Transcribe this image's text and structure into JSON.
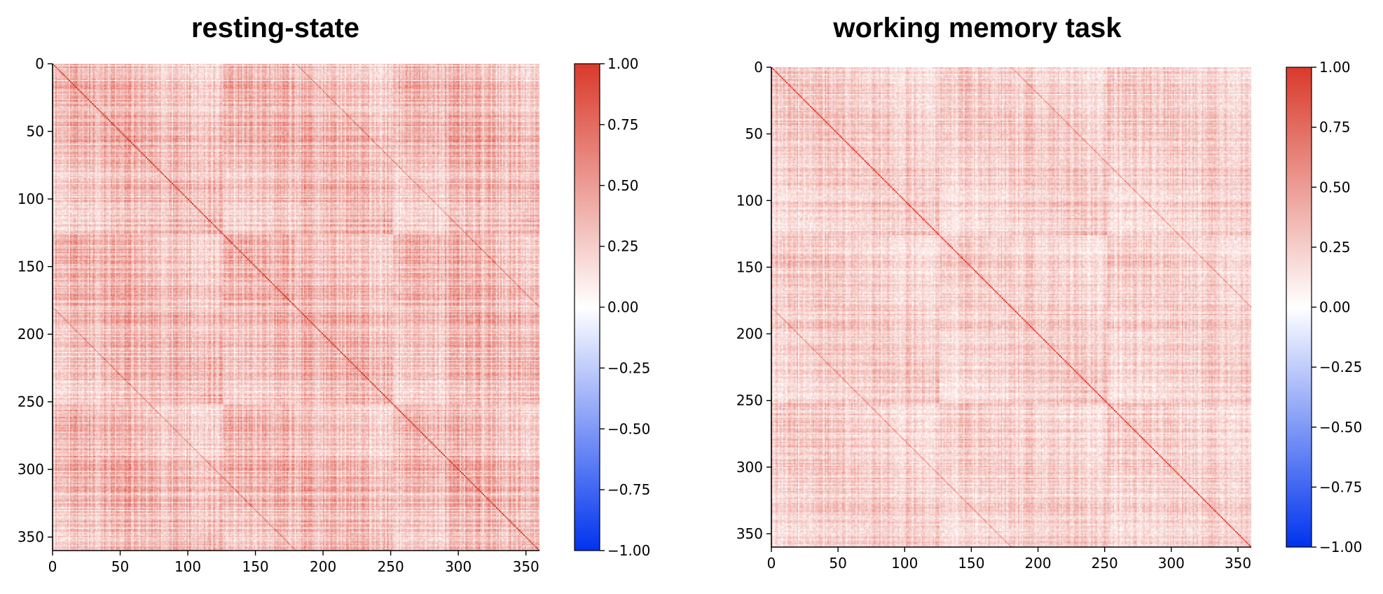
{
  "chart_data": [
    {
      "type": "heatmap",
      "title": "resting-state",
      "matrix_size": 360,
      "xticks": [
        0,
        50,
        100,
        150,
        200,
        250,
        300,
        350
      ],
      "yticks": [
        0,
        50,
        100,
        150,
        200,
        250,
        300,
        350
      ],
      "xlim": [
        0,
        360
      ],
      "ylim": [
        360,
        0
      ],
      "diagonal_value": 1.0,
      "mean_offdiag_value": 0.3,
      "colorbar": {
        "range": [
          -1.0,
          1.0
        ],
        "ticks": [
          "1.00",
          "0.75",
          "0.50",
          "0.25",
          "0.00",
          "−0.25",
          "−0.50",
          "−0.75",
          "−1.00"
        ],
        "tick_values": [
          1.0,
          0.75,
          0.5,
          0.25,
          0.0,
          -0.25,
          -0.5,
          -0.75,
          -1.0
        ],
        "colors": {
          "high": "#d93a2b",
          "mid": "#ffffff",
          "low": "#0033ee"
        }
      }
    },
    {
      "type": "heatmap",
      "title": "working memory task",
      "matrix_size": 360,
      "xticks": [
        0,
        50,
        100,
        150,
        200,
        250,
        300,
        350
      ],
      "yticks": [
        0,
        50,
        100,
        150,
        200,
        250,
        300,
        350
      ],
      "xlim": [
        0,
        360
      ],
      "ylim": [
        360,
        0
      ],
      "diagonal_value": 1.0,
      "mean_offdiag_value": 0.22,
      "colorbar": {
        "range": [
          -1.0,
          1.0
        ],
        "ticks": [
          "1.00",
          "0.75",
          "0.50",
          "0.25",
          "0.00",
          "−0.25",
          "−0.50",
          "−0.75",
          "−1.00"
        ],
        "tick_values": [
          1.0,
          0.75,
          0.5,
          0.25,
          0.0,
          -0.25,
          -0.5,
          -0.75,
          -1.0
        ],
        "colors": {
          "high": "#d93a2b",
          "mid": "#ffffff",
          "low": "#0033ee"
        }
      }
    }
  ]
}
